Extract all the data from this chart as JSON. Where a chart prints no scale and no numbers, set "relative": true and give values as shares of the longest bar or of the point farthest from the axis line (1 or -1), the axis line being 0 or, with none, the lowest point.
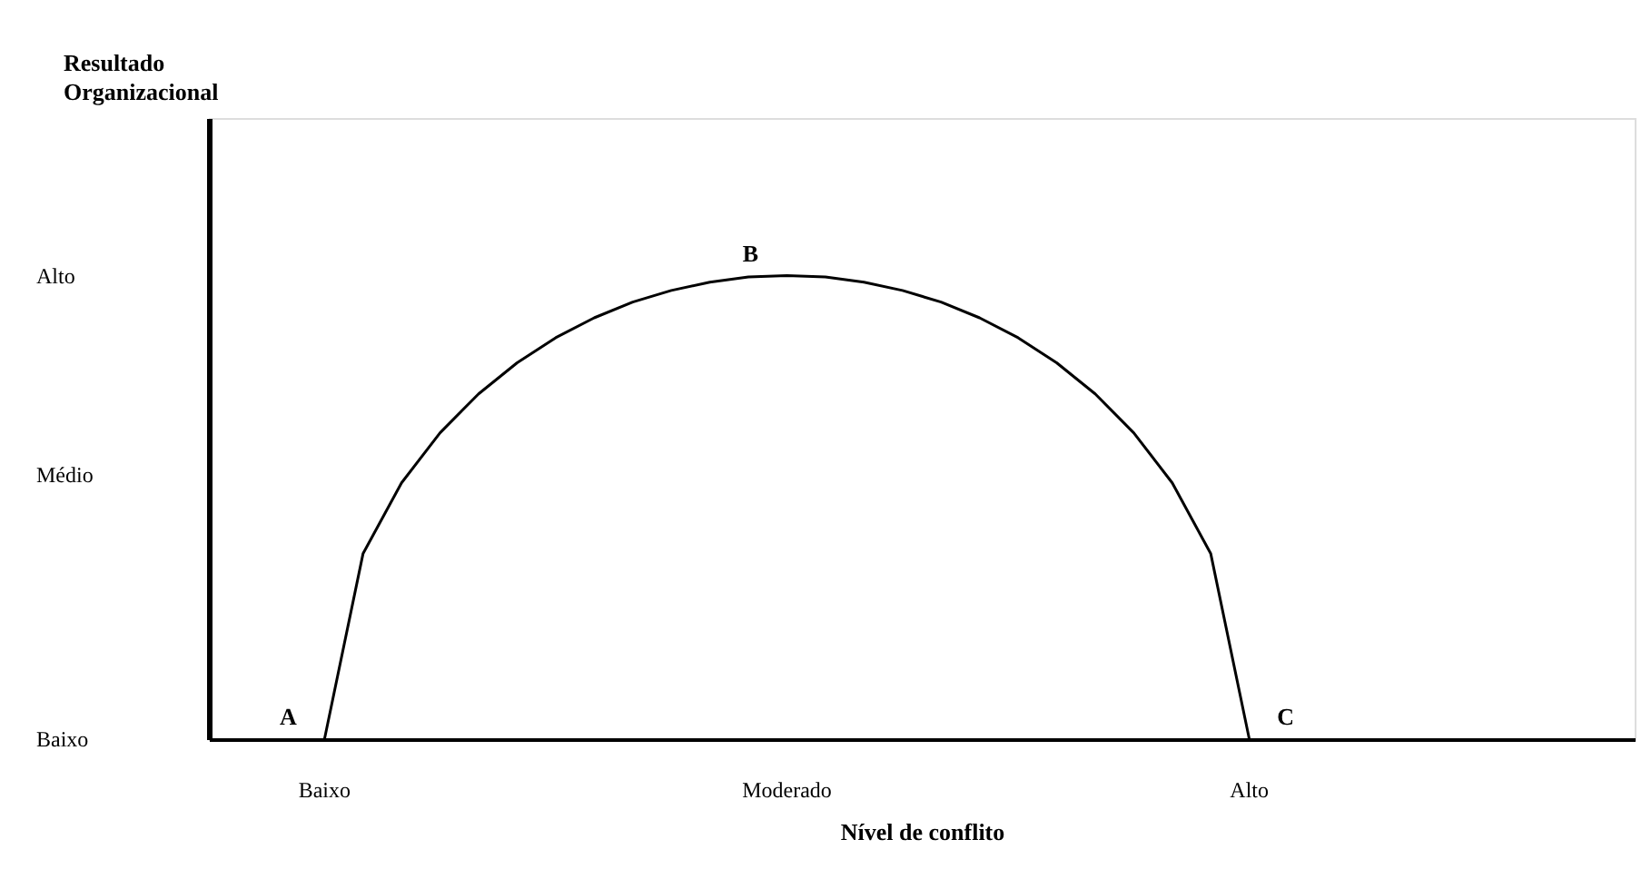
{
  "chart_data": {
    "type": "line",
    "relative": true,
    "xlabel": "Nível de conflito",
    "categories": [
      null,
      null,
      null,
      "Baixo",
      null,
      null,
      null,
      null,
      null,
      null,
      null,
      null,
      null,
      null,
      null,
      "Moderado",
      null,
      null,
      null,
      null,
      null,
      null,
      null,
      null,
      null,
      null,
      null,
      "Alto",
      null,
      null,
      null,
      null,
      null,
      null,
      null,
      null,
      null,
      null
    ],
    "series": [
      {
        "color": "#000000",
        "values": [
          null,
          null,
          null,
          0,
          0.4,
          0.553,
          0.661,
          0.745,
          0.812,
          0.866,
          0.909,
          0.943,
          0.968,
          0.986,
          0.997,
          1.0,
          0.997,
          0.986,
          0.968,
          0.943,
          0.909,
          0.866,
          0.812,
          0.745,
          0.661,
          0.553,
          0.4,
          0,
          null,
          null,
          null,
          null,
          null,
          null,
          null,
          null,
          null,
          null
        ]
      }
    ],
    "annotations": [
      {
        "text": "A",
        "x": "Baixo",
        "y": 0
      },
      {
        "text": "B",
        "x": "Moderado",
        "y": 1.0
      },
      {
        "text": "C",
        "x": "Alto",
        "y": 0
      },
      "Resultado Organizacional",
      "Baixo",
      "Médio",
      "Alto"
    ],
    "grid": false,
    "line_style": "solid",
    "marker": "none"
  }
}
